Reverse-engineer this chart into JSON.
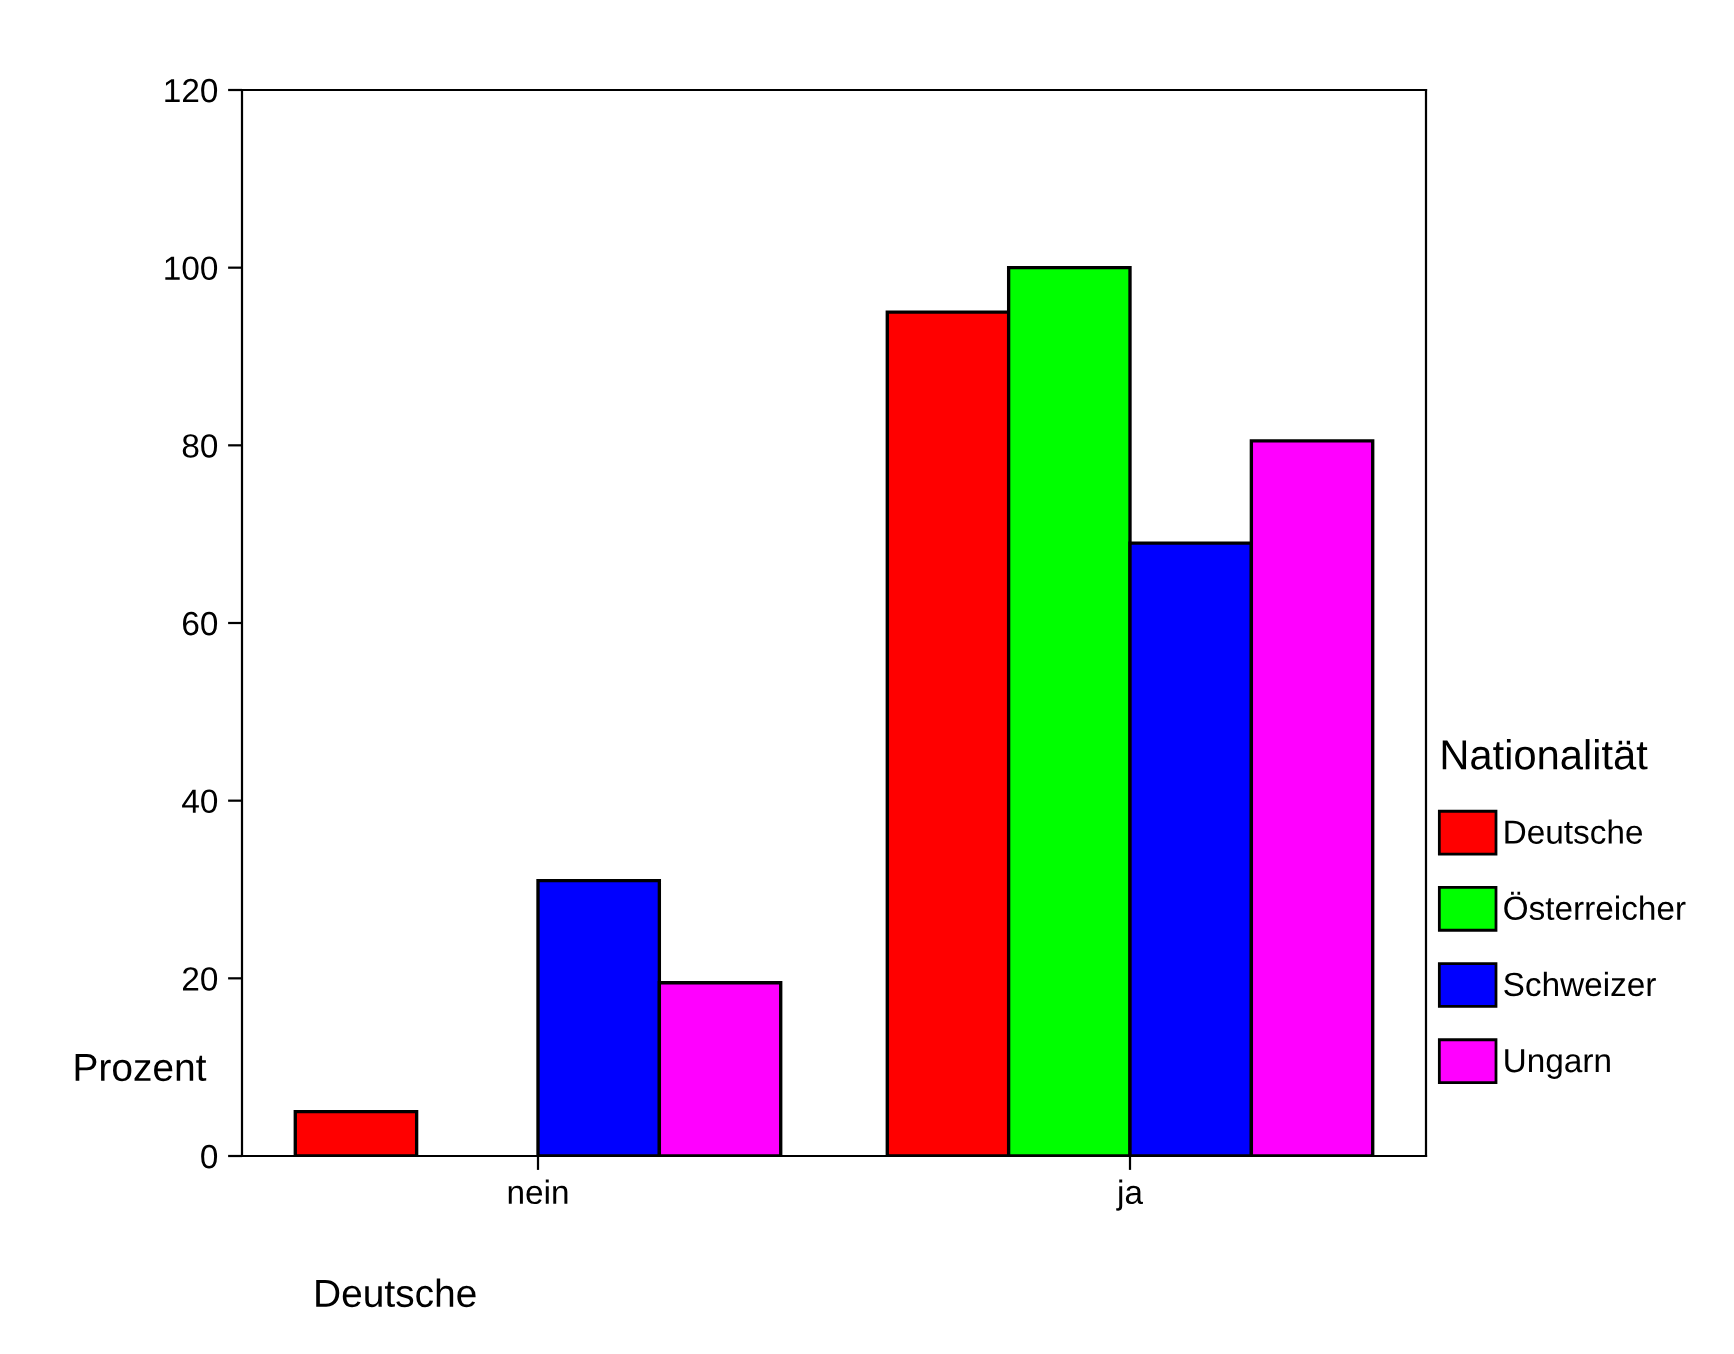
{
  "chart_data": {
    "type": "bar",
    "xlabel": "Deutsche",
    "ylabel": "Prozent",
    "legend_title": "Nationalität",
    "categories": [
      "nein",
      "ja"
    ],
    "series": [
      {
        "name": "Deutsche",
        "color": "#ff0000",
        "values": [
          5,
          95
        ]
      },
      {
        "name": "Österreicher",
        "color": "#00ff00",
        "values": [
          0,
          100
        ]
      },
      {
        "name": "Schweizer",
        "color": "#0000ff",
        "values": [
          31,
          69
        ]
      },
      {
        "name": "Ungarn",
        "color": "#ff00ff",
        "values": [
          19.5,
          80.5
        ]
      }
    ],
    "ylim": [
      0,
      120
    ],
    "yticks": [
      0,
      20,
      40,
      60,
      80,
      100,
      120
    ],
    "grid": false,
    "legend": "right"
  }
}
